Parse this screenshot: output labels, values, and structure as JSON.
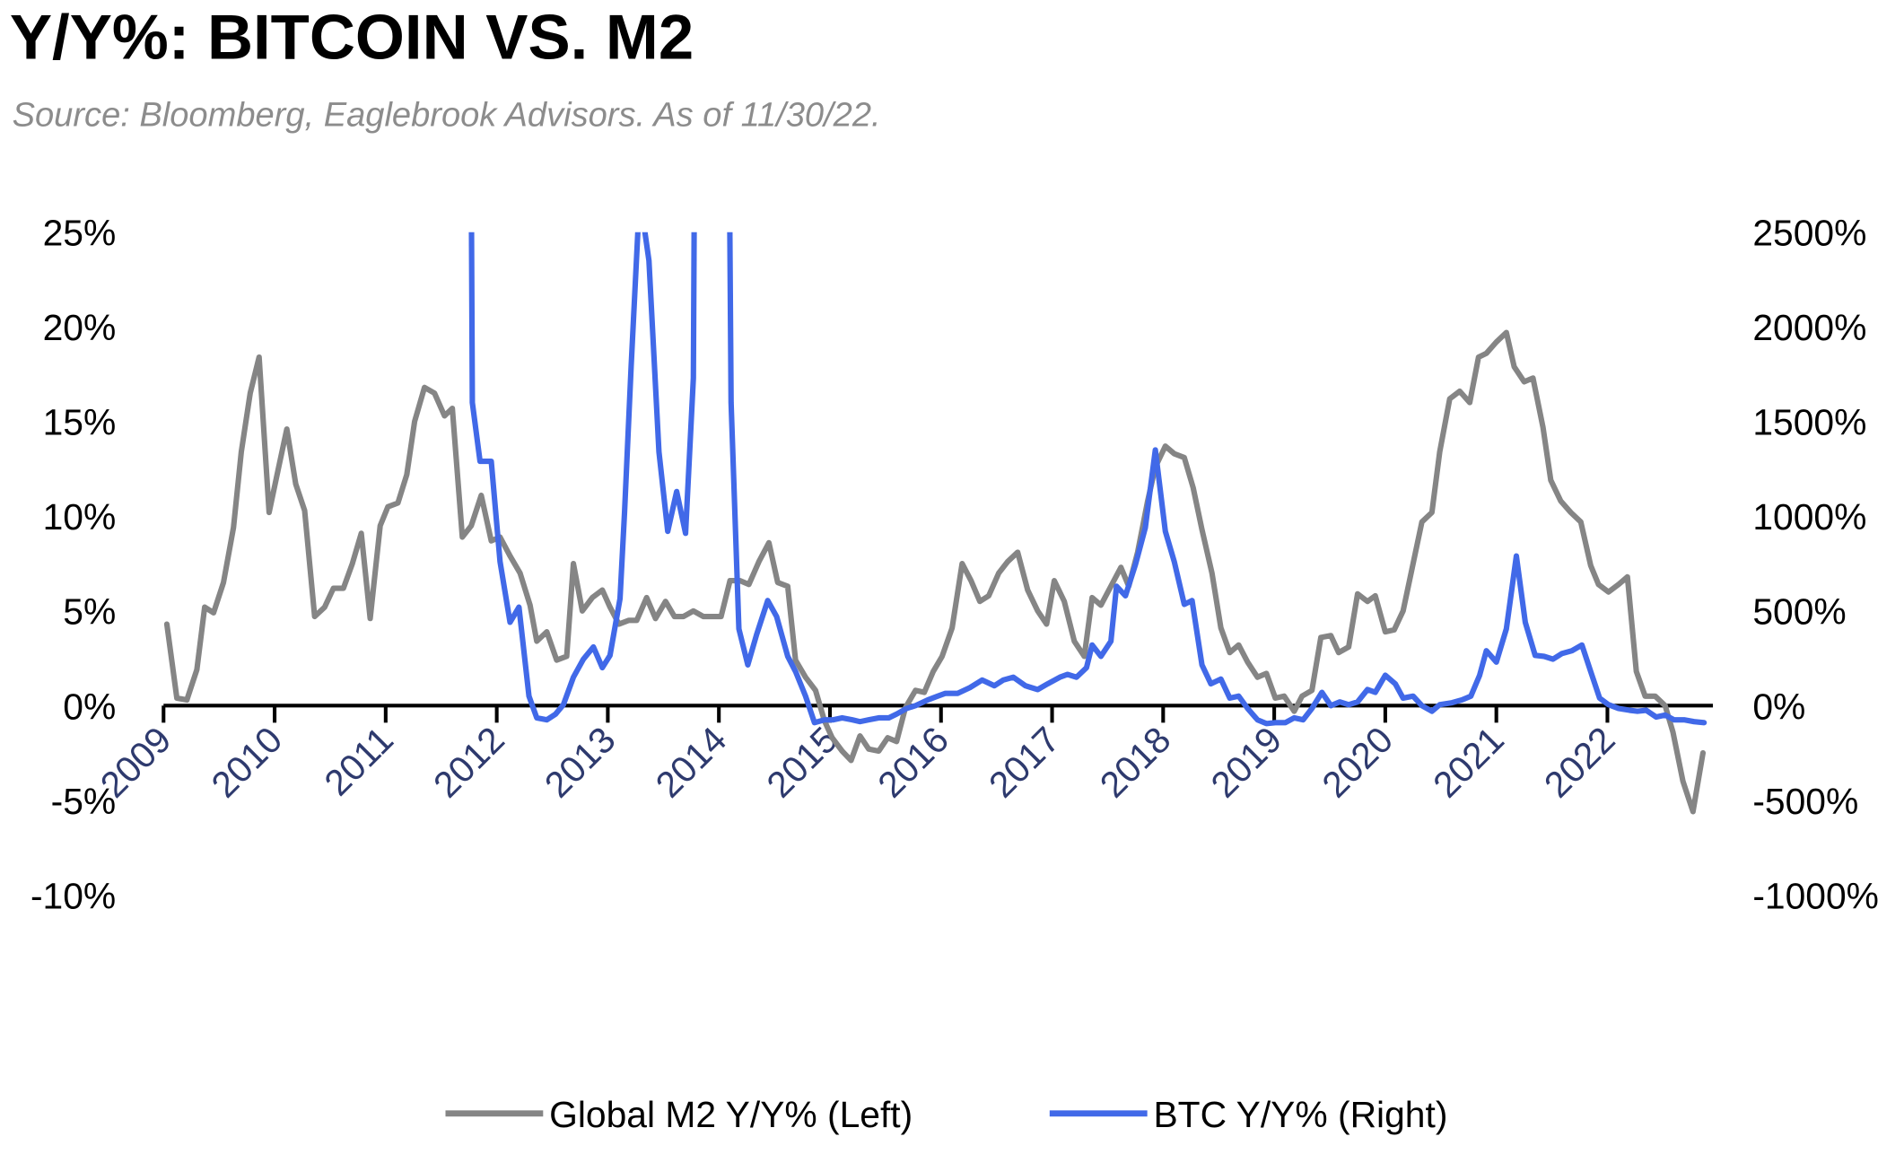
{
  "chart_data": {
    "type": "line",
    "title": "Y/Y%: BITCOIN VS. M2",
    "subtitle": "Source: Bloomberg, Eaglebrook Advisors. As of 11/30/22.",
    "xlabel": "",
    "x_ticks": [
      "2009",
      "2010",
      "2011",
      "2012",
      "2013",
      "2014",
      "2015",
      "2016",
      "2017",
      "2018",
      "2019",
      "2020",
      "2021",
      "2022"
    ],
    "xlim": [
      2009,
      2022.95
    ],
    "y_left": {
      "label": "",
      "ylim": [
        -10,
        25
      ],
      "ticks": [
        "25%",
        "20%",
        "15%",
        "10%",
        "5%",
        "0%",
        "-5%",
        "-10%"
      ]
    },
    "y_right": {
      "label": "",
      "ylim": [
        -1000,
        2500
      ],
      "ticks": [
        "2500%",
        "2000%",
        "1500%",
        "1000%",
        "500%",
        "0%",
        "-500%",
        "-1000%"
      ]
    },
    "grid": false,
    "legend_position": "bottom",
    "series": [
      {
        "name": "Global M2 Y/Y% (Left)",
        "axis": "left",
        "color": "#858585",
        "points": [
          [
            2009.03,
            4.3
          ],
          [
            2009.12,
            0.4
          ],
          [
            2009.21,
            0.3
          ],
          [
            2009.3,
            1.9
          ],
          [
            2009.37,
            5.2
          ],
          [
            2009.45,
            4.9
          ],
          [
            2009.54,
            6.5
          ],
          [
            2009.63,
            9.4
          ],
          [
            2009.7,
            13.4
          ],
          [
            2009.78,
            16.5
          ],
          [
            2009.86,
            18.4
          ],
          [
            2009.95,
            10.2
          ],
          [
            2010.03,
            12.4
          ],
          [
            2010.11,
            14.6
          ],
          [
            2010.19,
            11.7
          ],
          [
            2010.27,
            10.3
          ],
          [
            2010.36,
            4.7
          ],
          [
            2010.45,
            5.2
          ],
          [
            2010.53,
            6.2
          ],
          [
            2010.62,
            6.2
          ],
          [
            2010.7,
            7.5
          ],
          [
            2010.78,
            9.1
          ],
          [
            2010.86,
            4.6
          ],
          [
            2010.95,
            9.5
          ],
          [
            2011.02,
            10.5
          ],
          [
            2011.11,
            10.7
          ],
          [
            2011.19,
            12.2
          ],
          [
            2011.26,
            15.0
          ],
          [
            2011.35,
            16.8
          ],
          [
            2011.44,
            16.5
          ],
          [
            2011.53,
            15.3
          ],
          [
            2011.6,
            15.7
          ],
          [
            2011.69,
            8.9
          ],
          [
            2011.77,
            9.5
          ],
          [
            2011.86,
            11.1
          ],
          [
            2011.95,
            8.7
          ],
          [
            2012.03,
            8.9
          ],
          [
            2012.12,
            7.9
          ],
          [
            2012.21,
            7.0
          ],
          [
            2012.3,
            5.3
          ],
          [
            2012.36,
            3.4
          ],
          [
            2012.45,
            3.9
          ],
          [
            2012.54,
            2.4
          ],
          [
            2012.63,
            2.6
          ],
          [
            2012.69,
            7.5
          ],
          [
            2012.77,
            5.0
          ],
          [
            2012.86,
            5.7
          ],
          [
            2012.95,
            6.1
          ],
          [
            2013.02,
            5.2
          ],
          [
            2013.1,
            4.3
          ],
          [
            2013.19,
            4.5
          ],
          [
            2013.26,
            4.5
          ],
          [
            2013.35,
            5.7
          ],
          [
            2013.43,
            4.6
          ],
          [
            2013.52,
            5.5
          ],
          [
            2013.6,
            4.7
          ],
          [
            2013.68,
            4.7
          ],
          [
            2013.77,
            5.0
          ],
          [
            2013.86,
            4.7
          ],
          [
            2013.95,
            4.7
          ],
          [
            2014.02,
            4.7
          ],
          [
            2014.1,
            6.6
          ],
          [
            2014.19,
            6.6
          ],
          [
            2014.27,
            6.4
          ],
          [
            2014.36,
            7.6
          ],
          [
            2014.45,
            8.6
          ],
          [
            2014.53,
            6.5
          ],
          [
            2014.62,
            6.3
          ],
          [
            2014.69,
            2.4
          ],
          [
            2014.78,
            1.5
          ],
          [
            2014.87,
            0.8
          ],
          [
            2014.95,
            -0.8
          ],
          [
            2015.02,
            -1.7
          ],
          [
            2015.11,
            -2.4
          ],
          [
            2015.19,
            -2.9
          ],
          [
            2015.27,
            -1.6
          ],
          [
            2015.35,
            -2.3
          ],
          [
            2015.44,
            -2.4
          ],
          [
            2015.52,
            -1.7
          ],
          [
            2015.6,
            -1.9
          ],
          [
            2015.68,
            -0.1
          ],
          [
            2015.77,
            0.8
          ],
          [
            2015.85,
            0.7
          ],
          [
            2015.93,
            1.8
          ],
          [
            2016.01,
            2.6
          ],
          [
            2016.1,
            4.1
          ],
          [
            2016.19,
            7.5
          ],
          [
            2016.27,
            6.6
          ],
          [
            2016.35,
            5.5
          ],
          [
            2016.43,
            5.8
          ],
          [
            2016.52,
            7.0
          ],
          [
            2016.6,
            7.6
          ],
          [
            2016.69,
            8.1
          ],
          [
            2016.78,
            6.1
          ],
          [
            2016.87,
            5.0
          ],
          [
            2016.95,
            4.3
          ],
          [
            2017.02,
            6.6
          ],
          [
            2017.11,
            5.5
          ],
          [
            2017.2,
            3.4
          ],
          [
            2017.29,
            2.6
          ],
          [
            2017.36,
            5.7
          ],
          [
            2017.44,
            5.3
          ],
          [
            2017.53,
            6.3
          ],
          [
            2017.62,
            7.3
          ],
          [
            2017.69,
            6.3
          ],
          [
            2017.77,
            8.1
          ],
          [
            2017.86,
            10.8
          ],
          [
            2017.93,
            12.6
          ],
          [
            2018.02,
            13.7
          ],
          [
            2018.1,
            13.3
          ],
          [
            2018.19,
            13.1
          ],
          [
            2018.27,
            11.5
          ],
          [
            2018.35,
            9.3
          ],
          [
            2018.44,
            7.0
          ],
          [
            2018.52,
            4.1
          ],
          [
            2018.6,
            2.8
          ],
          [
            2018.68,
            3.2
          ],
          [
            2018.76,
            2.3
          ],
          [
            2018.85,
            1.5
          ],
          [
            2018.93,
            1.7
          ],
          [
            2019.01,
            0.4
          ],
          [
            2019.09,
            0.5
          ],
          [
            2019.18,
            -0.3
          ],
          [
            2019.25,
            0.5
          ],
          [
            2019.34,
            0.8
          ],
          [
            2019.42,
            3.6
          ],
          [
            2019.51,
            3.7
          ],
          [
            2019.58,
            2.8
          ],
          [
            2019.67,
            3.1
          ],
          [
            2019.75,
            5.9
          ],
          [
            2019.84,
            5.5
          ],
          [
            2019.91,
            5.8
          ],
          [
            2020.0,
            3.9
          ],
          [
            2020.08,
            4.0
          ],
          [
            2020.16,
            5.0
          ],
          [
            2020.25,
            7.5
          ],
          [
            2020.33,
            9.7
          ],
          [
            2020.42,
            10.2
          ],
          [
            2020.49,
            13.4
          ],
          [
            2020.58,
            16.2
          ],
          [
            2020.67,
            16.6
          ],
          [
            2020.76,
            16.0
          ],
          [
            2020.84,
            18.4
          ],
          [
            2020.91,
            18.6
          ],
          [
            2021.0,
            19.2
          ],
          [
            2021.09,
            19.7
          ],
          [
            2021.16,
            17.9
          ],
          [
            2021.25,
            17.1
          ],
          [
            2021.33,
            17.3
          ],
          [
            2021.42,
            14.7
          ],
          [
            2021.49,
            11.9
          ],
          [
            2021.58,
            10.8
          ],
          [
            2021.67,
            10.2
          ],
          [
            2021.76,
            9.7
          ],
          [
            2021.85,
            7.4
          ],
          [
            2021.92,
            6.4
          ],
          [
            2022.01,
            6.0
          ],
          [
            2022.1,
            6.4
          ],
          [
            2022.18,
            6.8
          ],
          [
            2022.26,
            1.8
          ],
          [
            2022.34,
            0.5
          ],
          [
            2022.43,
            0.5
          ],
          [
            2022.52,
            0.0
          ],
          [
            2022.59,
            -1.4
          ],
          [
            2022.68,
            -4.0
          ],
          [
            2022.77,
            -5.6
          ],
          [
            2022.86,
            -2.5
          ]
        ]
      },
      {
        "name": "BTC Y/Y% (Right)",
        "axis": "right",
        "color": "#4169e8",
        "points": [
          [
            2011.76,
            4000
          ],
          [
            2011.78,
            1600
          ],
          [
            2011.85,
            1290
          ],
          [
            2011.95,
            1290
          ],
          [
            2012.03,
            760
          ],
          [
            2012.12,
            440
          ],
          [
            2012.2,
            520
          ],
          [
            2012.29,
            50
          ],
          [
            2012.36,
            -65
          ],
          [
            2012.45,
            -75
          ],
          [
            2012.53,
            -45
          ],
          [
            2012.6,
            5
          ],
          [
            2012.69,
            150
          ],
          [
            2012.78,
            245
          ],
          [
            2012.87,
            310
          ],
          [
            2012.95,
            200
          ],
          [
            2013.02,
            265
          ],
          [
            2013.11,
            565
          ],
          [
            2013.15,
            1020
          ],
          [
            2013.21,
            1790
          ],
          [
            2013.27,
            2500
          ],
          [
            2013.31,
            2600
          ],
          [
            2013.37,
            2350
          ],
          [
            2013.46,
            1340
          ],
          [
            2013.54,
            920
          ],
          [
            2013.62,
            1130
          ],
          [
            2013.7,
            910
          ],
          [
            2013.77,
            1730
          ],
          [
            2013.79,
            4000
          ],
          [
            2014.08,
            4000
          ],
          [
            2014.11,
            1600
          ],
          [
            2014.18,
            405
          ],
          [
            2014.26,
            215
          ],
          [
            2014.34,
            375
          ],
          [
            2014.44,
            555
          ],
          [
            2014.52,
            470
          ],
          [
            2014.62,
            260
          ],
          [
            2014.69,
            180
          ],
          [
            2014.78,
            50
          ],
          [
            2014.86,
            -90
          ],
          [
            2014.95,
            -75
          ],
          [
            2015.03,
            -75
          ],
          [
            2015.11,
            -65
          ],
          [
            2015.2,
            -75
          ],
          [
            2015.27,
            -85
          ],
          [
            2015.35,
            -75
          ],
          [
            2015.44,
            -65
          ],
          [
            2015.53,
            -65
          ],
          [
            2015.6,
            -45
          ],
          [
            2015.69,
            -15
          ],
          [
            2015.77,
            0
          ],
          [
            2015.88,
            30
          ],
          [
            2015.97,
            50
          ],
          [
            2016.04,
            65
          ],
          [
            2016.15,
            65
          ],
          [
            2016.26,
            95
          ],
          [
            2016.37,
            135
          ],
          [
            2016.48,
            105
          ],
          [
            2016.56,
            135
          ],
          [
            2016.65,
            150
          ],
          [
            2016.76,
            105
          ],
          [
            2016.87,
            85
          ],
          [
            2016.96,
            115
          ],
          [
            2017.07,
            150
          ],
          [
            2017.14,
            165
          ],
          [
            2017.22,
            150
          ],
          [
            2017.31,
            200
          ],
          [
            2017.36,
            320
          ],
          [
            2017.44,
            260
          ],
          [
            2017.53,
            340
          ],
          [
            2017.58,
            630
          ],
          [
            2017.66,
            580
          ],
          [
            2017.75,
            745
          ],
          [
            2017.84,
            940
          ],
          [
            2017.93,
            1350
          ],
          [
            2018.02,
            920
          ],
          [
            2018.1,
            760
          ],
          [
            2018.19,
            535
          ],
          [
            2018.26,
            555
          ],
          [
            2018.35,
            215
          ],
          [
            2018.43,
            115
          ],
          [
            2018.52,
            140
          ],
          [
            2018.6,
            40
          ],
          [
            2018.68,
            50
          ],
          [
            2018.76,
            -15
          ],
          [
            2018.85,
            -75
          ],
          [
            2018.93,
            -95
          ],
          [
            2019.01,
            -90
          ],
          [
            2019.1,
            -90
          ],
          [
            2019.18,
            -65
          ],
          [
            2019.26,
            -75
          ],
          [
            2019.34,
            -15
          ],
          [
            2019.43,
            70
          ],
          [
            2019.51,
            0
          ],
          [
            2019.59,
            20
          ],
          [
            2019.67,
            5
          ],
          [
            2019.75,
            20
          ],
          [
            2019.84,
            85
          ],
          [
            2019.91,
            70
          ],
          [
            2020.0,
            160
          ],
          [
            2020.09,
            115
          ],
          [
            2020.16,
            40
          ],
          [
            2020.25,
            50
          ],
          [
            2020.33,
            0
          ],
          [
            2020.42,
            -30
          ],
          [
            2020.49,
            5
          ],
          [
            2020.6,
            15
          ],
          [
            2020.69,
            30
          ],
          [
            2020.77,
            50
          ],
          [
            2020.85,
            160
          ],
          [
            2020.91,
            290
          ],
          [
            2021.0,
            230
          ],
          [
            2021.09,
            405
          ],
          [
            2021.18,
            790
          ],
          [
            2021.26,
            440
          ],
          [
            2021.35,
            265
          ],
          [
            2021.43,
            260
          ],
          [
            2021.51,
            245
          ],
          [
            2021.59,
            275
          ],
          [
            2021.68,
            290
          ],
          [
            2021.77,
            320
          ],
          [
            2021.85,
            180
          ],
          [
            2021.93,
            40
          ],
          [
            2022.01,
            5
          ],
          [
            2022.1,
            -15
          ],
          [
            2022.2,
            -25
          ],
          [
            2022.27,
            -30
          ],
          [
            2022.35,
            -25
          ],
          [
            2022.44,
            -60
          ],
          [
            2022.52,
            -50
          ],
          [
            2022.6,
            -75
          ],
          [
            2022.69,
            -75
          ],
          [
            2022.78,
            -85
          ],
          [
            2022.87,
            -90
          ]
        ]
      }
    ]
  }
}
